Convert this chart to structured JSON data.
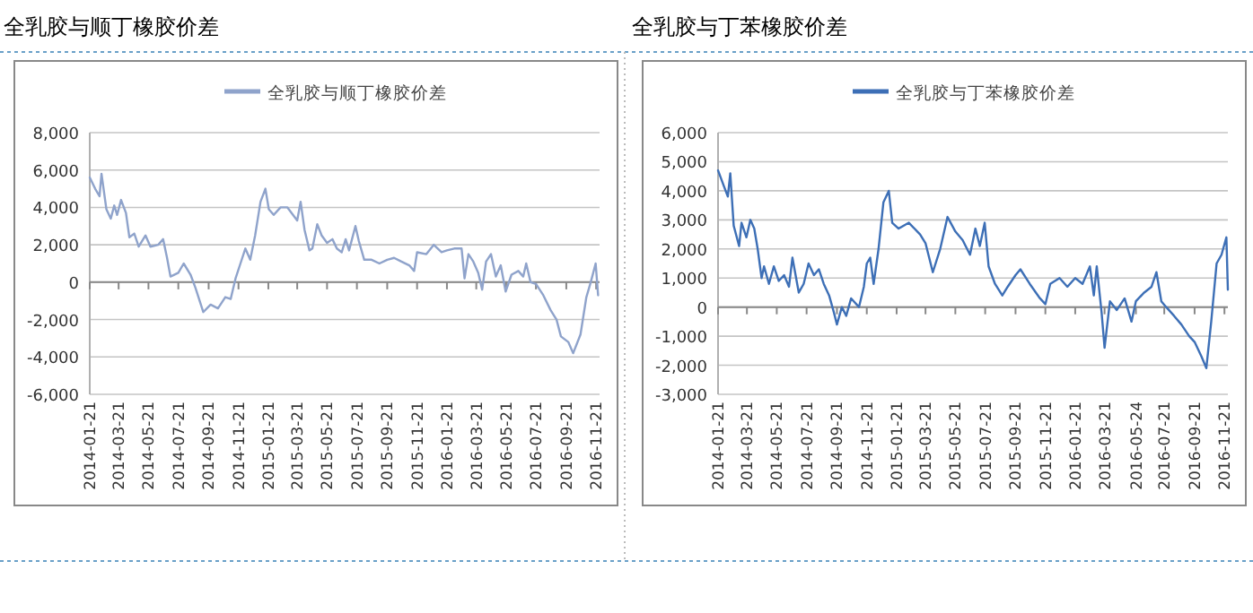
{
  "chart_data": [
    {
      "type": "line",
      "title": "全乳胶与顺丁橡胶价差",
      "grid": "y",
      "legend": "top",
      "xlim": [
        "2014-01-21",
        "2016-11-28"
      ],
      "xticks": [
        {
          "value": "2014-01-21",
          "label": "2014-01-21"
        },
        {
          "value": "2014-03-21",
          "label": "2014-03-21"
        },
        {
          "value": "2014-05-21",
          "label": "2014-05-21"
        },
        {
          "value": "2014-07-21",
          "label": "2014-07-21"
        },
        {
          "value": "2014-09-21",
          "label": "2014-09-21"
        },
        {
          "value": "2014-11-21",
          "label": "2014-11-21"
        },
        {
          "value": "2015-01-21",
          "label": "2015-01-21"
        },
        {
          "value": "2015-03-21",
          "label": "2015-03-21"
        },
        {
          "value": "2015-05-21",
          "label": "2015-05-21"
        },
        {
          "value": "2015-07-21",
          "label": "2015-07-21"
        },
        {
          "value": "2015-09-21",
          "label": "2015-09-21"
        },
        {
          "value": "2015-11-21",
          "label": "2015-11-21"
        },
        {
          "value": "2016-01-21",
          "label": "2016-01-21"
        },
        {
          "value": "2016-03-21",
          "label": "2016-03-21"
        },
        {
          "value": "2016-05-21",
          "label": "2016-05-21"
        },
        {
          "value": "2016-07-21",
          "label": "2016-07-21"
        },
        {
          "value": "2016-09-21",
          "label": "2016-09-21"
        },
        {
          "value": "2016-11-21",
          "label": "2016-11-21"
        }
      ],
      "ylim": [
        -6000,
        8000
      ],
      "yticks": [
        {
          "value": -6000,
          "label": "-6,000"
        },
        {
          "value": -4000,
          "label": "-4,000"
        },
        {
          "value": -2000,
          "label": "-2,000"
        },
        0,
        {
          "value": 2000,
          "label": "2,000"
        },
        {
          "value": 4000,
          "label": "4,000"
        },
        {
          "value": 6000,
          "label": "6,000"
        },
        {
          "value": 8000,
          "label": "8,000"
        }
      ],
      "series": [
        {
          "name": "全乳胶与顺丁橡胶价差",
          "color": "#8fa3cb",
          "x": [
            "2014-01-21",
            "2014-02-01",
            "2014-02-10",
            "2014-02-14",
            "2014-02-24",
            "2014-03-05",
            "2014-03-12",
            "2014-03-18",
            "2014-03-26",
            "2014-04-05",
            "2014-04-12",
            "2014-04-22",
            "2014-05-01",
            "2014-05-15",
            "2014-05-25",
            "2014-06-10",
            "2014-06-20",
            "2014-06-28",
            "2014-07-05",
            "2014-07-21",
            "2014-08-01",
            "2014-08-15",
            "2014-08-25",
            "2014-09-10",
            "2014-09-25",
            "2014-10-10",
            "2014-10-25",
            "2014-11-05",
            "2014-11-15",
            "2014-11-25",
            "2014-12-05",
            "2014-12-15",
            "2014-12-25",
            "2015-01-05",
            "2015-01-15",
            "2015-01-22",
            "2015-02-01",
            "2015-02-15",
            "2015-03-01",
            "2015-03-21",
            "2015-03-28",
            "2015-04-05",
            "2015-04-15",
            "2015-04-21",
            "2015-05-01",
            "2015-05-10",
            "2015-05-21",
            "2015-06-01",
            "2015-06-10",
            "2015-06-20",
            "2015-06-28",
            "2015-07-05",
            "2015-07-18",
            "2015-07-25",
            "2015-08-05",
            "2015-08-20",
            "2015-09-05",
            "2015-09-21",
            "2015-10-05",
            "2015-10-20",
            "2015-11-05",
            "2015-11-15",
            "2015-11-21",
            "2015-12-10",
            "2015-12-25",
            "2016-01-10",
            "2016-01-21",
            "2016-02-05",
            "2016-02-20",
            "2016-02-26",
            "2016-03-05",
            "2016-03-15",
            "2016-03-25",
            "2016-04-02",
            "2016-04-10",
            "2016-04-20",
            "2016-04-30",
            "2016-05-10",
            "2016-05-20",
            "2016-06-01",
            "2016-06-15",
            "2016-06-25",
            "2016-07-01",
            "2016-07-10",
            "2016-07-21",
            "2016-08-05",
            "2016-08-20",
            "2016-09-01",
            "2016-09-10",
            "2016-09-25",
            "2016-10-05",
            "2016-10-20",
            "2016-11-01",
            "2016-11-10",
            "2016-11-15",
            "2016-11-20",
            "2016-11-25"
          ],
          "values": [
            5600,
            5000,
            4600,
            5800,
            3900,
            3400,
            4100,
            3600,
            4400,
            3700,
            2400,
            2600,
            1900,
            2500,
            1900,
            2000,
            2300,
            1300,
            300,
            500,
            1000,
            400,
            -300,
            -1600,
            -1200,
            -1400,
            -800,
            -900,
            200,
            1000,
            1800,
            1200,
            2500,
            4300,
            5000,
            3900,
            3600,
            4000,
            4000,
            3300,
            4300,
            2800,
            1700,
            1800,
            3100,
            2500,
            2100,
            2300,
            1800,
            1600,
            2300,
            1700,
            3000,
            2200,
            1200,
            1200,
            1000,
            1200,
            1300,
            1100,
            900,
            600,
            1600,
            1500,
            2000,
            1600,
            1700,
            1800,
            1800,
            200,
            1500,
            1100,
            500,
            -400,
            1100,
            1500,
            300,
            900,
            -500,
            400,
            600,
            300,
            1000,
            0,
            -100,
            -700,
            -1500,
            -2000,
            -2900,
            -3200,
            -3800,
            -2800,
            -800,
            0,
            500,
            1000,
            -700
          ]
        }
      ]
    },
    {
      "type": "line",
      "title": "全乳胶与丁苯橡胶价差",
      "grid": "y",
      "legend": "top",
      "xlim": [
        "2014-01-21",
        "2016-11-28"
      ],
      "xticks": [
        {
          "value": "2014-01-21",
          "label": "2014-01-21"
        },
        {
          "value": "2014-03-21",
          "label": "2014-03-21"
        },
        {
          "value": "2014-05-21",
          "label": "2014-05-21"
        },
        {
          "value": "2014-07-21",
          "label": "2014-07-21"
        },
        {
          "value": "2014-09-21",
          "label": "2014-09-21"
        },
        {
          "value": "2014-11-21",
          "label": "2014-11-21"
        },
        {
          "value": "2015-01-21",
          "label": "2015-01-21"
        },
        {
          "value": "2015-03-21",
          "label": "2015-03-21"
        },
        {
          "value": "2015-05-21",
          "label": "2015-05-21"
        },
        {
          "value": "2015-07-21",
          "label": "2015-07-21"
        },
        {
          "value": "2015-09-21",
          "label": "2015-09-21"
        },
        {
          "value": "2015-11-21",
          "label": "2015-11-21"
        },
        {
          "value": "2016-01-21",
          "label": "2016-01-21"
        },
        {
          "value": "2016-03-21",
          "label": "2016-03-21"
        },
        {
          "value": "2016-05-24",
          "label": "2016-05-24"
        },
        {
          "value": "2016-07-21",
          "label": "2016-07-21"
        },
        {
          "value": "2016-09-21",
          "label": "2016-09-21"
        },
        {
          "value": "2016-11-21",
          "label": "2016-11-21"
        }
      ],
      "ylim": [
        -3000,
        6000
      ],
      "yticks": [
        {
          "value": -3000,
          "label": "-3,000"
        },
        {
          "value": -2000,
          "label": "-2,000"
        },
        {
          "value": -1000,
          "label": "-1,000"
        },
        0,
        {
          "value": 1000,
          "label": "1,000"
        },
        {
          "value": 2000,
          "label": "2,000"
        },
        {
          "value": 3000,
          "label": "3,000"
        },
        {
          "value": 4000,
          "label": "4,000"
        },
        {
          "value": 5000,
          "label": "5,000"
        },
        {
          "value": 6000,
          "label": "6,000"
        }
      ],
      "series": [
        {
          "name": "全乳胶与丁苯橡胶价差",
          "color": "#3d6fb6",
          "x": [
            "2014-01-21",
            "2014-02-01",
            "2014-02-10",
            "2014-02-15",
            "2014-02-22",
            "2014-03-05",
            "2014-03-10",
            "2014-03-20",
            "2014-03-28",
            "2014-04-05",
            "2014-04-12",
            "2014-04-20",
            "2014-04-25",
            "2014-05-05",
            "2014-05-15",
            "2014-05-25",
            "2014-06-05",
            "2014-06-15",
            "2014-06-22",
            "2014-07-05",
            "2014-07-15",
            "2014-07-25",
            "2014-08-05",
            "2014-08-15",
            "2014-08-25",
            "2014-09-05",
            "2014-09-15",
            "2014-09-21",
            "2014-10-01",
            "2014-10-10",
            "2014-10-20",
            "2014-11-05",
            "2014-11-15",
            "2014-11-21",
            "2014-11-28",
            "2014-12-05",
            "2014-12-15",
            "2014-12-25",
            "2015-01-05",
            "2015-01-12",
            "2015-01-25",
            "2015-02-15",
            "2015-03-10",
            "2015-03-21",
            "2015-04-05",
            "2015-04-20",
            "2015-05-05",
            "2015-05-21",
            "2015-06-05",
            "2015-06-20",
            "2015-07-01",
            "2015-07-10",
            "2015-07-20",
            "2015-07-28",
            "2015-08-10",
            "2015-08-25",
            "2015-09-05",
            "2015-09-21",
            "2015-10-01",
            "2015-10-20",
            "2015-11-10",
            "2015-11-21",
            "2015-12-01",
            "2015-12-20",
            "2016-01-05",
            "2016-01-21",
            "2016-02-05",
            "2016-02-20",
            "2016-02-28",
            "2016-03-05",
            "2016-03-15",
            "2016-03-21",
            "2016-04-01",
            "2016-04-15",
            "2016-05-01",
            "2016-05-15",
            "2016-05-24",
            "2016-06-10",
            "2016-06-25",
            "2016-07-05",
            "2016-07-15",
            "2016-07-25",
            "2016-08-10",
            "2016-08-25",
            "2016-09-10",
            "2016-09-21",
            "2016-10-05",
            "2016-10-15",
            "2016-10-25",
            "2016-11-05",
            "2016-11-15",
            "2016-11-25",
            "2016-11-28"
          ],
          "values": [
            4700,
            4200,
            3800,
            4600,
            2800,
            2100,
            2900,
            2400,
            3000,
            2700,
            2000,
            1000,
            1400,
            800,
            1400,
            900,
            1100,
            700,
            1700,
            500,
            800,
            1500,
            1100,
            1300,
            800,
            400,
            -200,
            -600,
            0,
            -300,
            300,
            0,
            700,
            1500,
            1700,
            800,
            2000,
            3600,
            4000,
            2900,
            2700,
            2900,
            2500,
            2200,
            1200,
            2000,
            3100,
            2600,
            2300,
            1800,
            2700,
            2100,
            2900,
            1400,
            800,
            400,
            700,
            1100,
            1300,
            800,
            300,
            100,
            800,
            1000,
            700,
            1000,
            800,
            1400,
            400,
            1400,
            -200,
            -1400,
            200,
            -100,
            300,
            -500,
            200,
            500,
            700,
            1200,
            200,
            0,
            -300,
            -600,
            -1000,
            -1200,
            -1700,
            -2100,
            -500,
            1500,
            1800,
            2400,
            600
          ]
        }
      ]
    }
  ]
}
